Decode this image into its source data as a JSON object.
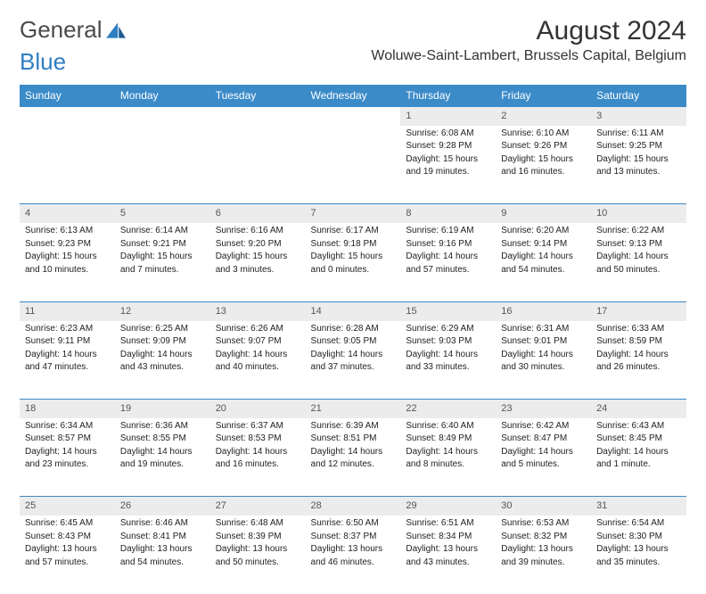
{
  "logo": {
    "word1": "General",
    "word2": "Blue"
  },
  "title": "August 2024",
  "location": "Woluwe-Saint-Lambert, Brussels Capital, Belgium",
  "colors": {
    "header_bg": "#3b8bc9",
    "header_fg": "#ffffff",
    "daynum_bg": "#ececec",
    "row_border": "#3b8bc9",
    "logo_gray": "#4a4a4a",
    "logo_blue": "#2f7ec2"
  },
  "weekdays": [
    "Sunday",
    "Monday",
    "Tuesday",
    "Wednesday",
    "Thursday",
    "Friday",
    "Saturday"
  ],
  "weeks": [
    [
      null,
      null,
      null,
      null,
      {
        "n": "1",
        "sunrise": "Sunrise: 6:08 AM",
        "sunset": "Sunset: 9:28 PM",
        "daylight1": "Daylight: 15 hours",
        "daylight2": "and 19 minutes."
      },
      {
        "n": "2",
        "sunrise": "Sunrise: 6:10 AM",
        "sunset": "Sunset: 9:26 PM",
        "daylight1": "Daylight: 15 hours",
        "daylight2": "and 16 minutes."
      },
      {
        "n": "3",
        "sunrise": "Sunrise: 6:11 AM",
        "sunset": "Sunset: 9:25 PM",
        "daylight1": "Daylight: 15 hours",
        "daylight2": "and 13 minutes."
      }
    ],
    [
      {
        "n": "4",
        "sunrise": "Sunrise: 6:13 AM",
        "sunset": "Sunset: 9:23 PM",
        "daylight1": "Daylight: 15 hours",
        "daylight2": "and 10 minutes."
      },
      {
        "n": "5",
        "sunrise": "Sunrise: 6:14 AM",
        "sunset": "Sunset: 9:21 PM",
        "daylight1": "Daylight: 15 hours",
        "daylight2": "and 7 minutes."
      },
      {
        "n": "6",
        "sunrise": "Sunrise: 6:16 AM",
        "sunset": "Sunset: 9:20 PM",
        "daylight1": "Daylight: 15 hours",
        "daylight2": "and 3 minutes."
      },
      {
        "n": "7",
        "sunrise": "Sunrise: 6:17 AM",
        "sunset": "Sunset: 9:18 PM",
        "daylight1": "Daylight: 15 hours",
        "daylight2": "and 0 minutes."
      },
      {
        "n": "8",
        "sunrise": "Sunrise: 6:19 AM",
        "sunset": "Sunset: 9:16 PM",
        "daylight1": "Daylight: 14 hours",
        "daylight2": "and 57 minutes."
      },
      {
        "n": "9",
        "sunrise": "Sunrise: 6:20 AM",
        "sunset": "Sunset: 9:14 PM",
        "daylight1": "Daylight: 14 hours",
        "daylight2": "and 54 minutes."
      },
      {
        "n": "10",
        "sunrise": "Sunrise: 6:22 AM",
        "sunset": "Sunset: 9:13 PM",
        "daylight1": "Daylight: 14 hours",
        "daylight2": "and 50 minutes."
      }
    ],
    [
      {
        "n": "11",
        "sunrise": "Sunrise: 6:23 AM",
        "sunset": "Sunset: 9:11 PM",
        "daylight1": "Daylight: 14 hours",
        "daylight2": "and 47 minutes."
      },
      {
        "n": "12",
        "sunrise": "Sunrise: 6:25 AM",
        "sunset": "Sunset: 9:09 PM",
        "daylight1": "Daylight: 14 hours",
        "daylight2": "and 43 minutes."
      },
      {
        "n": "13",
        "sunrise": "Sunrise: 6:26 AM",
        "sunset": "Sunset: 9:07 PM",
        "daylight1": "Daylight: 14 hours",
        "daylight2": "and 40 minutes."
      },
      {
        "n": "14",
        "sunrise": "Sunrise: 6:28 AM",
        "sunset": "Sunset: 9:05 PM",
        "daylight1": "Daylight: 14 hours",
        "daylight2": "and 37 minutes."
      },
      {
        "n": "15",
        "sunrise": "Sunrise: 6:29 AM",
        "sunset": "Sunset: 9:03 PM",
        "daylight1": "Daylight: 14 hours",
        "daylight2": "and 33 minutes."
      },
      {
        "n": "16",
        "sunrise": "Sunrise: 6:31 AM",
        "sunset": "Sunset: 9:01 PM",
        "daylight1": "Daylight: 14 hours",
        "daylight2": "and 30 minutes."
      },
      {
        "n": "17",
        "sunrise": "Sunrise: 6:33 AM",
        "sunset": "Sunset: 8:59 PM",
        "daylight1": "Daylight: 14 hours",
        "daylight2": "and 26 minutes."
      }
    ],
    [
      {
        "n": "18",
        "sunrise": "Sunrise: 6:34 AM",
        "sunset": "Sunset: 8:57 PM",
        "daylight1": "Daylight: 14 hours",
        "daylight2": "and 23 minutes."
      },
      {
        "n": "19",
        "sunrise": "Sunrise: 6:36 AM",
        "sunset": "Sunset: 8:55 PM",
        "daylight1": "Daylight: 14 hours",
        "daylight2": "and 19 minutes."
      },
      {
        "n": "20",
        "sunrise": "Sunrise: 6:37 AM",
        "sunset": "Sunset: 8:53 PM",
        "daylight1": "Daylight: 14 hours",
        "daylight2": "and 16 minutes."
      },
      {
        "n": "21",
        "sunrise": "Sunrise: 6:39 AM",
        "sunset": "Sunset: 8:51 PM",
        "daylight1": "Daylight: 14 hours",
        "daylight2": "and 12 minutes."
      },
      {
        "n": "22",
        "sunrise": "Sunrise: 6:40 AM",
        "sunset": "Sunset: 8:49 PM",
        "daylight1": "Daylight: 14 hours",
        "daylight2": "and 8 minutes."
      },
      {
        "n": "23",
        "sunrise": "Sunrise: 6:42 AM",
        "sunset": "Sunset: 8:47 PM",
        "daylight1": "Daylight: 14 hours",
        "daylight2": "and 5 minutes."
      },
      {
        "n": "24",
        "sunrise": "Sunrise: 6:43 AM",
        "sunset": "Sunset: 8:45 PM",
        "daylight1": "Daylight: 14 hours",
        "daylight2": "and 1 minute."
      }
    ],
    [
      {
        "n": "25",
        "sunrise": "Sunrise: 6:45 AM",
        "sunset": "Sunset: 8:43 PM",
        "daylight1": "Daylight: 13 hours",
        "daylight2": "and 57 minutes."
      },
      {
        "n": "26",
        "sunrise": "Sunrise: 6:46 AM",
        "sunset": "Sunset: 8:41 PM",
        "daylight1": "Daylight: 13 hours",
        "daylight2": "and 54 minutes."
      },
      {
        "n": "27",
        "sunrise": "Sunrise: 6:48 AM",
        "sunset": "Sunset: 8:39 PM",
        "daylight1": "Daylight: 13 hours",
        "daylight2": "and 50 minutes."
      },
      {
        "n": "28",
        "sunrise": "Sunrise: 6:50 AM",
        "sunset": "Sunset: 8:37 PM",
        "daylight1": "Daylight: 13 hours",
        "daylight2": "and 46 minutes."
      },
      {
        "n": "29",
        "sunrise": "Sunrise: 6:51 AM",
        "sunset": "Sunset: 8:34 PM",
        "daylight1": "Daylight: 13 hours",
        "daylight2": "and 43 minutes."
      },
      {
        "n": "30",
        "sunrise": "Sunrise: 6:53 AM",
        "sunset": "Sunset: 8:32 PM",
        "daylight1": "Daylight: 13 hours",
        "daylight2": "and 39 minutes."
      },
      {
        "n": "31",
        "sunrise": "Sunrise: 6:54 AM",
        "sunset": "Sunset: 8:30 PM",
        "daylight1": "Daylight: 13 hours",
        "daylight2": "and 35 minutes."
      }
    ]
  ]
}
